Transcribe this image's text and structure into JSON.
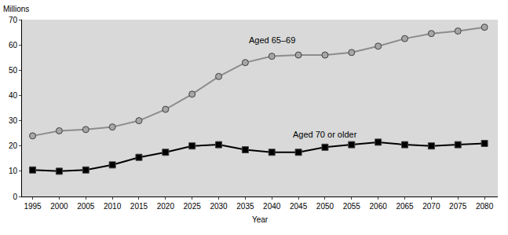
{
  "chart_data": {
    "type": "line",
    "xlabel": "Year",
    "ylabel": "Millions",
    "x": [
      1995,
      2000,
      2005,
      2010,
      2015,
      2020,
      2025,
      2030,
      2035,
      2040,
      2045,
      2050,
      2055,
      2060,
      2065,
      2070,
      2075,
      2080
    ],
    "series": [
      {
        "name": "Aged 65–69",
        "color": "#a6a6a6",
        "marker": "circle",
        "values": [
          24,
          26,
          26.5,
          27.5,
          30,
          34.5,
          40.5,
          47.5,
          53,
          55.5,
          56,
          56,
          57,
          59.5,
          62.5,
          64.5,
          65.5,
          67
        ]
      },
      {
        "name": "Aged 70 or older",
        "color": "#000000",
        "marker": "square",
        "values": [
          10.5,
          10,
          10.5,
          12.5,
          15.5,
          17.5,
          20,
          20.5,
          18.5,
          17.5,
          17.5,
          19.5,
          20.5,
          21.5,
          20.5,
          20,
          20.5,
          21
        ]
      }
    ],
    "xlim": [
      1993,
      2082.5
    ],
    "xticks": [
      1995,
      2000,
      2005,
      2010,
      2015,
      2020,
      2025,
      2030,
      2035,
      2040,
      2045,
      2050,
      2055,
      2060,
      2065,
      2070,
      2075,
      2080
    ],
    "ylim": [
      0,
      70
    ],
    "yticks": [
      0,
      10,
      20,
      30,
      40,
      50,
      60,
      70
    ],
    "grid": false
  }
}
